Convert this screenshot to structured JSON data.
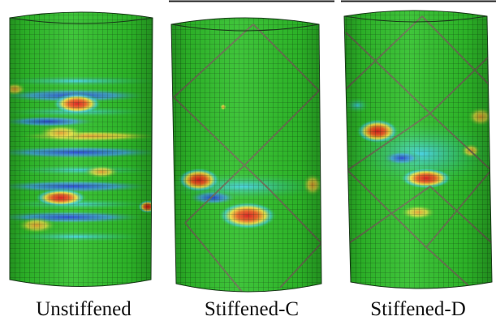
{
  "panels": [
    {
      "caption": "Unstiffened"
    },
    {
      "caption": "Stiffened-C"
    },
    {
      "caption": "Stiffened-D"
    }
  ],
  "colors": {
    "mesh_base": "#2fc02a",
    "mesh_line": "#0a2a0a",
    "low_blue": "#1f3fd0",
    "mid_cyan": "#3fd0e0",
    "high_yellow": "#e8e040",
    "peak_red": "#d81818",
    "stiffener": "#6a6a50"
  },
  "icons": {
    "panel_1": "unstiffened-cylinder-contour",
    "panel_2": "stiffened-c-cylinder-contour",
    "panel_3": "stiffened-d-cylinder-contour"
  }
}
